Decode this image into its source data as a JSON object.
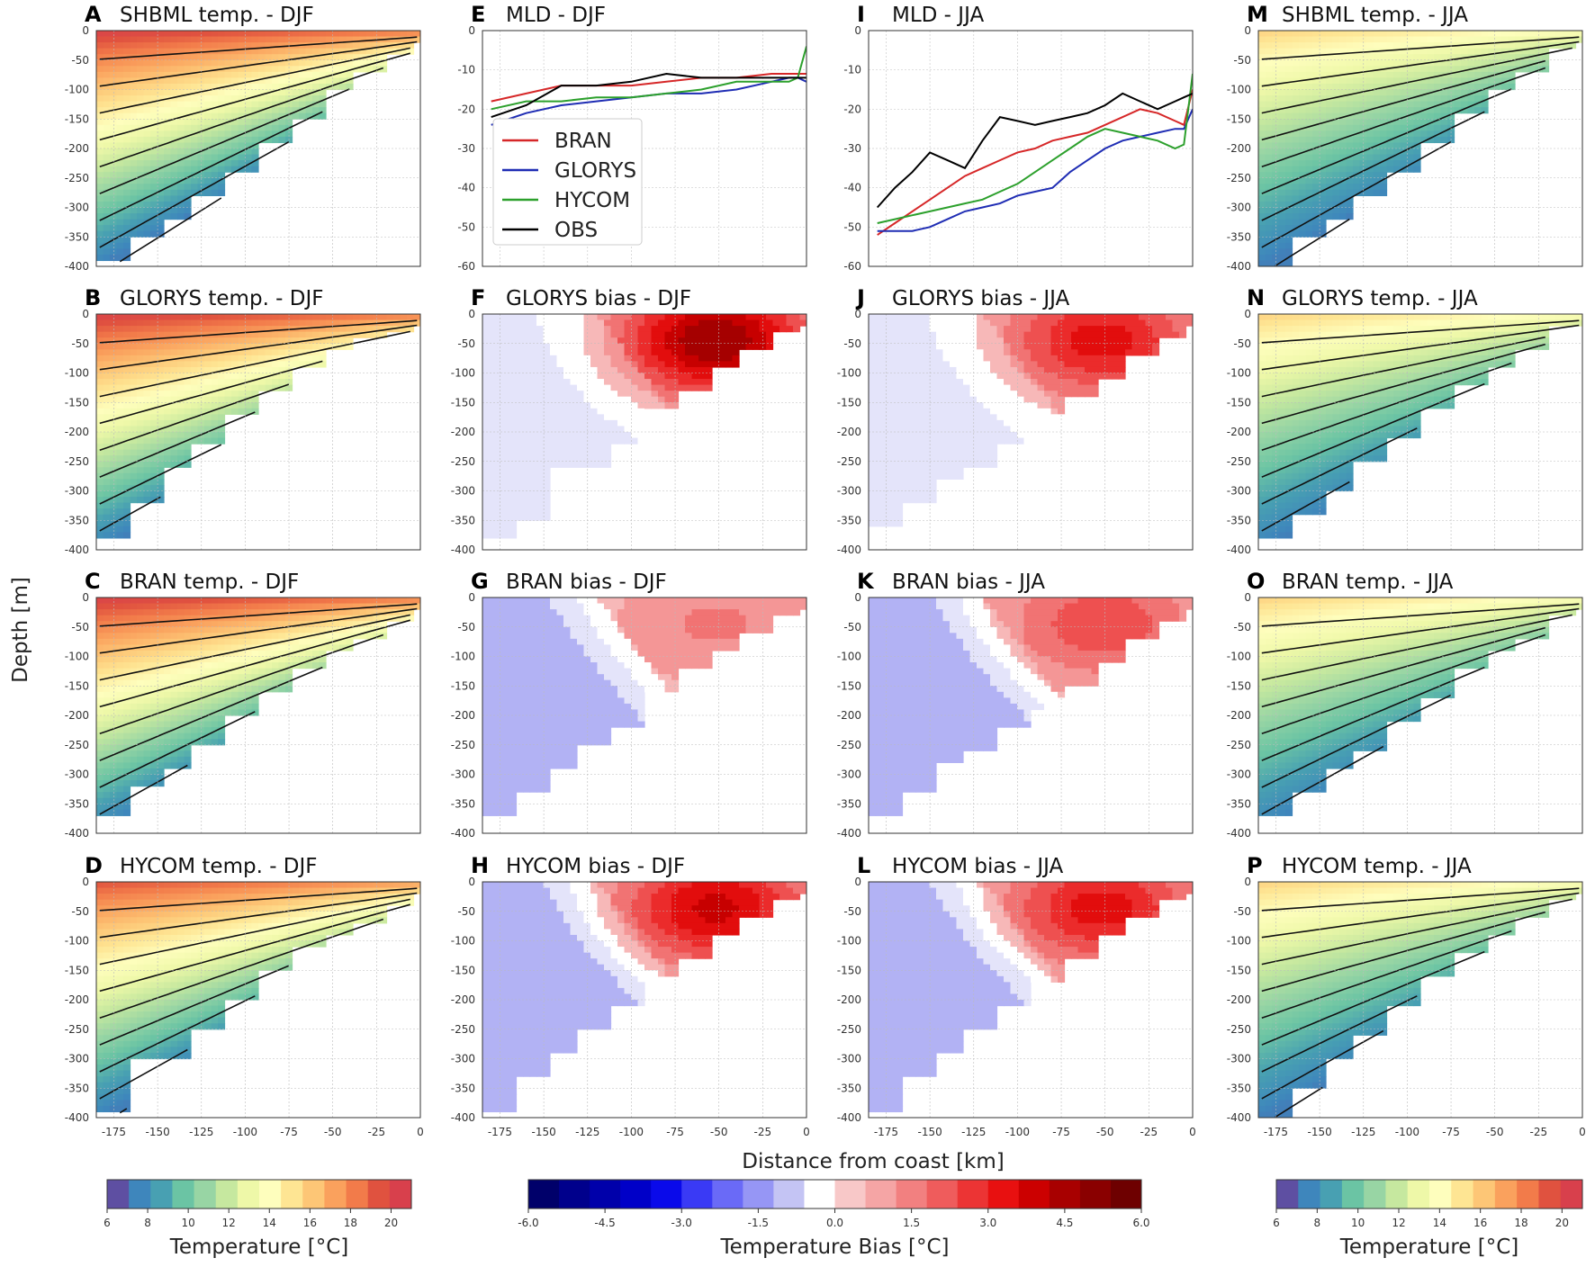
{
  "chart_data": [
    {
      "panel": "A",
      "type": "heatmap",
      "title": "SHBML temp. - DJF",
      "kind": "temp",
      "season": "DJF",
      "shelf_edge_depths": [
        -395,
        -350,
        -320,
        -285,
        -245,
        -195,
        -155,
        -100,
        -70,
        -40
      ],
      "surface_temp": [
        21,
        19
      ],
      "colorbar": "temperature"
    },
    {
      "panel": "B",
      "type": "heatmap",
      "title": "GLORYS temp. - DJF",
      "kind": "temp",
      "season": "DJF",
      "shelf_edge_depths": [
        -380,
        -320,
        -265,
        -225,
        -170,
        -130,
        -95,
        -65,
        -45,
        -30
      ],
      "surface_temp": [
        21,
        19
      ],
      "colorbar": "temperature"
    },
    {
      "panel": "C",
      "type": "heatmap",
      "title": "BRAN temp. - DJF",
      "kind": "temp",
      "season": "DJF",
      "shelf_edge_depths": [
        -375,
        -325,
        -290,
        -250,
        -200,
        -160,
        -120,
        -95,
        -75,
        -45
      ],
      "surface_temp": [
        21,
        19
      ],
      "colorbar": "temperature"
    },
    {
      "panel": "D",
      "type": "heatmap",
      "title": "HYCOM temp. - DJF",
      "kind": "temp",
      "season": "DJF",
      "shelf_edge_depths": [
        -395,
        -300,
        -300,
        -250,
        -200,
        -150,
        -110,
        -90,
        -75,
        -45
      ],
      "surface_temp": [
        20,
        18
      ],
      "colorbar": "temperature"
    },
    {
      "panel": "E",
      "type": "line",
      "title": "MLD - DJF",
      "x": [
        -180,
        -160,
        -140,
        -120,
        -100,
        -80,
        -60,
        -40,
        -20,
        -10,
        -5,
        0
      ],
      "series": [
        {
          "name": "BRAN",
          "color": "#d62728",
          "values": [
            -18,
            -16,
            -14,
            -14,
            -14,
            -13,
            -12,
            -12,
            -11,
            -11,
            -11,
            -11
          ]
        },
        {
          "name": "GLORYS",
          "color": "#1f2db4",
          "values": [
            -24,
            -21,
            -19,
            -18,
            -17,
            -16,
            -16,
            -15,
            -13,
            -12,
            -12,
            -13
          ]
        },
        {
          "name": "HYCOM",
          "color": "#2ca02c",
          "values": [
            -20,
            -18,
            -18,
            -17,
            -17,
            -16,
            -15,
            -13,
            -13,
            -13,
            -12,
            -4
          ]
        },
        {
          "name": "OBS",
          "color": "#000000",
          "values": [
            -22,
            -19,
            -14,
            -14,
            -13,
            -11,
            -12,
            -12,
            -12,
            -12,
            -12,
            -12
          ]
        }
      ],
      "xlim": [
        -185,
        0
      ],
      "ylim": [
        -60,
        0
      ],
      "yticks": [
        0,
        -10,
        -20,
        -30,
        -40,
        -50,
        -60
      ],
      "legend": [
        "BRAN",
        "GLORYS",
        "HYCOM",
        "OBS"
      ],
      "legend_loc": "lower-left"
    },
    {
      "panel": "I",
      "type": "line",
      "title": "MLD - JJA",
      "x": [
        -180,
        -170,
        -160,
        -150,
        -140,
        -130,
        -120,
        -110,
        -100,
        -90,
        -80,
        -70,
        -60,
        -50,
        -40,
        -30,
        -20,
        -10,
        -5,
        0
      ],
      "series": [
        {
          "name": "BRAN",
          "color": "#d62728",
          "values": [
            -52,
            -49,
            -46,
            -43,
            -40,
            -37,
            -35,
            -33,
            -31,
            -30,
            -28,
            -27,
            -26,
            -24,
            -22,
            -20,
            -21,
            -23,
            -24,
            -15
          ]
        },
        {
          "name": "GLORYS",
          "color": "#1f2db4",
          "values": [
            -51,
            -51,
            -51,
            -50,
            -48,
            -46,
            -45,
            -44,
            -42,
            -41,
            -40,
            -36,
            -33,
            -30,
            -28,
            -27,
            -26,
            -25,
            -25,
            -20
          ]
        },
        {
          "name": "HYCOM",
          "color": "#2ca02c",
          "values": [
            -49,
            -48,
            -47,
            -46,
            -45,
            -44,
            -43,
            -41,
            -39,
            -36,
            -33,
            -30,
            -27,
            -25,
            -26,
            -27,
            -28,
            -30,
            -29,
            -11
          ]
        },
        {
          "name": "OBS",
          "color": "#000000",
          "values": [
            -45,
            -40,
            -36,
            -31,
            -33,
            -35,
            -28,
            -22,
            -23,
            -24,
            -23,
            -22,
            -21,
            -19,
            -16,
            -18,
            -20,
            -18,
            -17,
            -16
          ]
        }
      ],
      "xlim": [
        -185,
        0
      ],
      "ylim": [
        -60,
        0
      ],
      "yticks": [
        0,
        -10,
        -20,
        -30,
        -40,
        -50,
        -60
      ]
    },
    {
      "panel": "F",
      "type": "heatmap",
      "title": "GLORYS bias - DJF",
      "kind": "bias",
      "season": "DJF",
      "shelf_edge_depths": [
        -380,
        -350,
        -265,
        -265,
        -225,
        -165,
        -130,
        -95,
        -65,
        -30
      ],
      "max_bias": 4.5,
      "min_bias": -0.5,
      "colorbar": "bias"
    },
    {
      "panel": "G",
      "type": "heatmap",
      "title": "BRAN bias - DJF",
      "kind": "bias",
      "season": "DJF",
      "shelf_edge_depths": [
        -370,
        -330,
        -290,
        -255,
        -220,
        -160,
        -120,
        -90,
        -60,
        -30
      ],
      "max_bias": 1.0,
      "min_bias": -1.5,
      "colorbar": "bias"
    },
    {
      "panel": "J",
      "type": "heatmap",
      "title": "GLORYS bias - JJA",
      "kind": "bias",
      "season": "JJA",
      "shelf_edge_depths": [
        -360,
        -320,
        -280,
        -265,
        -225,
        -195,
        -145,
        -110,
        -75,
        -40
      ],
      "max_bias": 3.0,
      "min_bias": -0.5,
      "colorbar": "bias"
    },
    {
      "panel": "K",
      "type": "heatmap",
      "title": "BRAN bias - JJA",
      "kind": "bias",
      "season": "JJA",
      "shelf_edge_depths": [
        -370,
        -330,
        -285,
        -265,
        -225,
        -190,
        -150,
        -110,
        -75,
        -40
      ],
      "max_bias": 2.0,
      "min_bias": -1.5,
      "colorbar": "bias"
    },
    {
      "panel": "H",
      "type": "heatmap",
      "title": "HYCOM bias - DJF",
      "kind": "bias",
      "season": "DJF",
      "shelf_edge_depths": [
        -395,
        -330,
        -295,
        -250,
        -210,
        -165,
        -130,
        -95,
        -60,
        -30
      ],
      "max_bias": 3.5,
      "min_bias": -1.5,
      "colorbar": "bias"
    },
    {
      "panel": "L",
      "type": "heatmap",
      "title": "HYCOM bias - JJA",
      "kind": "bias",
      "season": "JJA",
      "shelf_edge_depths": [
        -395,
        -330,
        -295,
        -250,
        -210,
        -170,
        -130,
        -95,
        -60,
        -30
      ],
      "max_bias": 3.0,
      "min_bias": -1.5,
      "colorbar": "bias"
    },
    {
      "panel": "M",
      "type": "heatmap",
      "title": "SHBML temp. - JJA",
      "kind": "temp",
      "season": "JJA",
      "shelf_edge_depths": [
        -400,
        -350,
        -320,
        -280,
        -240,
        -190,
        -140,
        -100,
        -70,
        -30
      ],
      "surface_temp": [
        16,
        14
      ],
      "colorbar": "temperature"
    },
    {
      "panel": "N",
      "type": "heatmap",
      "title": "GLORYS temp. - JJA",
      "kind": "temp",
      "season": "JJA",
      "shelf_edge_depths": [
        -380,
        -340,
        -300,
        -250,
        -215,
        -160,
        -120,
        -90,
        -60,
        -25
      ],
      "surface_temp": [
        16,
        14
      ],
      "colorbar": "temperature"
    },
    {
      "panel": "O",
      "type": "heatmap",
      "title": "BRAN temp. - JJA",
      "kind": "temp",
      "season": "JJA",
      "shelf_edge_depths": [
        -375,
        -330,
        -290,
        -260,
        -210,
        -170,
        -120,
        -90,
        -70,
        -35
      ],
      "surface_temp": [
        16,
        14
      ],
      "colorbar": "temperature"
    },
    {
      "panel": "P",
      "type": "heatmap",
      "title": "HYCOM temp. - JJA",
      "kind": "temp",
      "season": "JJA",
      "shelf_edge_depths": [
        -400,
        -350,
        -300,
        -260,
        -215,
        -165,
        -120,
        -90,
        -60,
        -30
      ],
      "surface_temp": [
        16,
        14
      ],
      "colorbar": "temperature"
    }
  ],
  "axes": {
    "x_ticks": [
      -175,
      -150,
      -125,
      -100,
      -75,
      -50,
      -25,
      0
    ],
    "xlim": [
      -185,
      0
    ],
    "depth_ticks": [
      0,
      -50,
      -100,
      -150,
      -200,
      -250,
      -300,
      -350,
      -400
    ],
    "depth_lim": [
      -400,
      0
    ],
    "xlabel": "Distance from coast [km]",
    "ylabel": "Depth [m]"
  },
  "colorbars": {
    "temperature": {
      "label": "Temperature [°C]",
      "range": [
        6,
        21
      ],
      "ticks": [
        6,
        8,
        10,
        12,
        14,
        16,
        18,
        20
      ],
      "colors": [
        "#5e4fa2",
        "#3e86bc",
        "#48a0b2",
        "#6bc4a4",
        "#98d5a4",
        "#c6e89f",
        "#eef8a8",
        "#fefebd",
        "#fee593",
        "#fdc676",
        "#faa15d",
        "#f27b4a",
        "#e0523f",
        "#d8404c"
      ]
    },
    "bias": {
      "label": "Temperature Bias [°C]",
      "range": [
        -6.0,
        6.0
      ],
      "ticks": [
        "-6.0",
        "-4.5",
        "-3.0",
        "-1.5",
        "0.0",
        "1.5",
        "3.0",
        "4.5",
        "6.0"
      ],
      "colors": [
        "#00006a",
        "#00008c",
        "#0000aa",
        "#0000c8",
        "#0a0aea",
        "#3a3af5",
        "#6a6af7",
        "#9696f5",
        "#c4c4f4",
        "#ffffff",
        "#f8c8c8",
        "#f5a5a5",
        "#f28080",
        "#ef5c5c",
        "#ec3434",
        "#e81010",
        "#cc0000",
        "#a80000",
        "#8a0000",
        "#6e0000"
      ]
    }
  }
}
